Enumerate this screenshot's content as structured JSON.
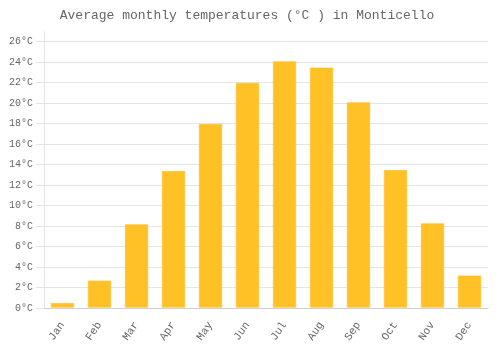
{
  "chart_data": {
    "type": "bar",
    "title": "Average monthly temperatures (°C ) in Monticello",
    "categories": [
      "Jan",
      "Feb",
      "Mar",
      "Apr",
      "May",
      "Jun",
      "Jul",
      "Aug",
      "Sep",
      "Oct",
      "Nov",
      "Dec"
    ],
    "values": [
      0.5,
      2.7,
      8.2,
      13.4,
      18.0,
      22.0,
      24.1,
      23.5,
      20.1,
      13.5,
      8.3,
      3.2
    ],
    "color": "#FFC125",
    "ylim": [
      0,
      27
    ],
    "yticks": [
      {
        "value": 0,
        "label": "0°C"
      },
      {
        "value": 2,
        "label": "2°C"
      },
      {
        "value": 4,
        "label": "4°C"
      },
      {
        "value": 6,
        "label": "6°C"
      },
      {
        "value": 8,
        "label": "8°C"
      },
      {
        "value": 10,
        "label": "10°C"
      },
      {
        "value": 12,
        "label": "12°C"
      },
      {
        "value": 14,
        "label": "14°C"
      },
      {
        "value": 16,
        "label": "16°C"
      },
      {
        "value": 18,
        "label": "18°C"
      },
      {
        "value": 20,
        "label": "20°C"
      },
      {
        "value": 22,
        "label": "22°C"
      },
      {
        "value": 24,
        "label": "24°C"
      },
      {
        "value": 26,
        "label": "26°C"
      }
    ],
    "grid": true
  }
}
